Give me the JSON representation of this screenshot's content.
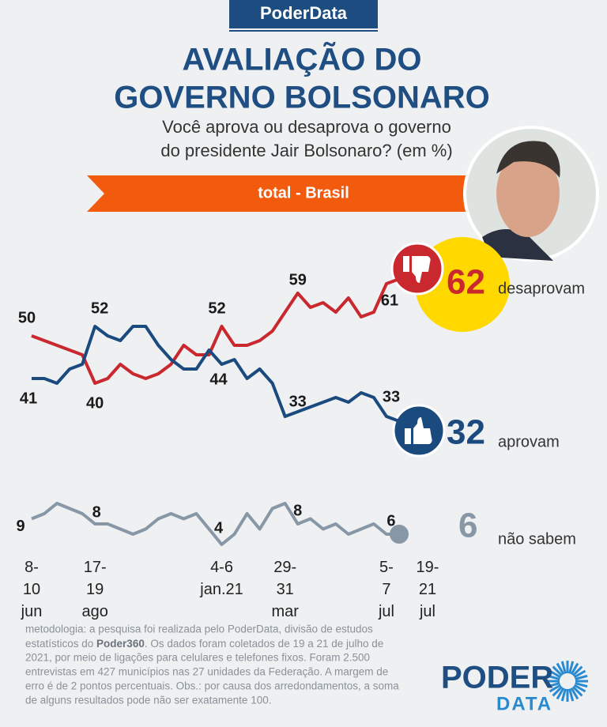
{
  "header": {
    "brand": "PoderData",
    "title": [
      "AVALIAÇÃO DO",
      "GOVERNO BOLSONARO"
    ],
    "subtitle": [
      "Você aprova ou desaprova o governo",
      "do presidente Jair Bolsonaro?  (em %)"
    ],
    "banner": "total - Brasil"
  },
  "chart_data": {
    "type": "line",
    "categories": [
      "8-10 jun",
      null,
      null,
      null,
      null,
      "17-19 ago",
      null,
      null,
      null,
      null,
      null,
      null,
      null,
      null,
      null,
      "4-6 jan.21",
      null,
      null,
      null,
      null,
      "29-31 mar",
      null,
      null,
      null,
      null,
      null,
      null,
      null,
      "5-7 jul",
      "19-21 jul"
    ],
    "ylim": [
      30,
      65
    ],
    "y2lim": [
      0,
      12
    ],
    "series": [
      {
        "name": "desaprovam",
        "color": "#c8282e",
        "values": [
          50,
          49,
          48,
          47,
          46,
          40,
          41,
          44,
          42,
          41,
          42,
          44,
          48,
          46,
          46,
          52,
          48,
          48,
          49,
          51,
          55,
          59,
          56,
          57,
          55,
          58,
          54,
          55,
          61,
          62
        ]
      },
      {
        "name": "aprovam",
        "color": "#1b4a7e",
        "values": [
          41,
          41,
          40,
          43,
          44,
          52,
          50,
          49,
          52,
          52,
          48,
          45,
          43,
          43,
          47,
          44,
          45,
          41,
          43,
          40,
          33,
          34,
          35,
          36,
          37,
          36,
          38,
          37,
          33,
          32
        ]
      },
      {
        "name": "não sabem",
        "color": "#8797a6",
        "axis": "y2",
        "values": [
          9,
          10,
          12,
          11,
          10,
          8,
          8,
          7,
          6,
          7,
          9,
          10,
          9,
          10,
          7,
          4,
          6,
          10,
          7,
          11,
          12,
          8,
          9,
          7,
          8,
          6,
          7,
          8,
          6,
          6
        ]
      }
    ]
  },
  "footer": {
    "lines": [
      "metodologia: a pesquisa foi realizada pelo PoderData, divisão de estudos",
      [
        "estatísticos do ",
        "Poder360",
        ". Os dados foram coletados de 19 a 21 de julho de"
      ],
      "2021, por meio de ligações para celulares e telefones fixos. Foram 2.500",
      "entrevistas em 427 municípios nas 27 unidades da Federação. A margem de",
      "erro é de 2 pontos percentuais. Obs.: por causa dos arredondamentos, a soma",
      "de alguns resultados pode não ser exatamente 100."
    ],
    "logo": [
      "PODER",
      "DATA"
    ]
  }
}
